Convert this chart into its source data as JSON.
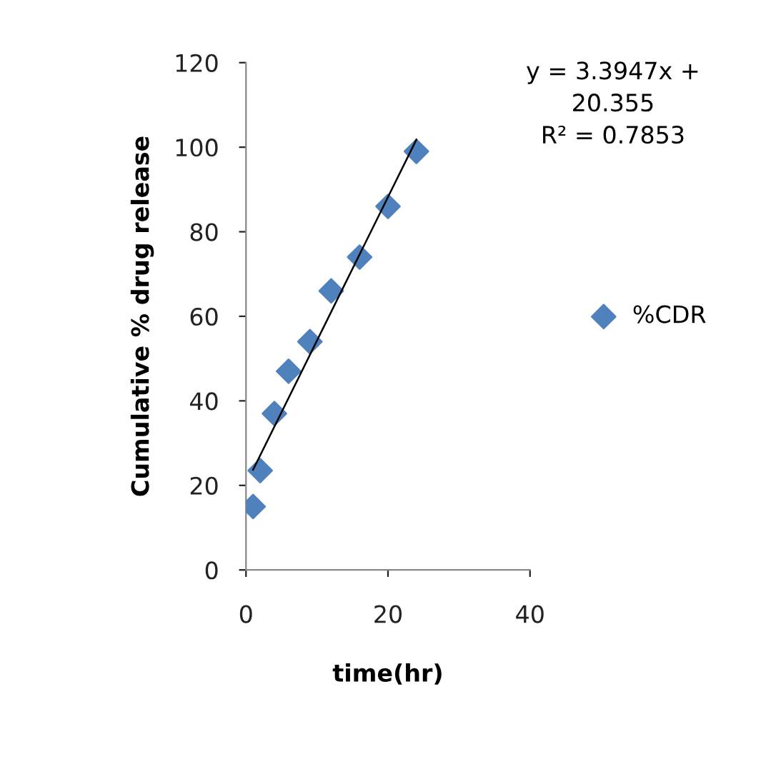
{
  "chart_data": {
    "type": "scatter",
    "xlabel": "time(hr)",
    "ylabel": "Cumulative % drug release",
    "series": [
      {
        "name": "%CDR",
        "color": "#4f81bd",
        "marker": "diamond",
        "x": [
          1,
          2,
          4,
          6,
          9,
          12,
          16,
          20,
          24
        ],
        "values": [
          15,
          23.5,
          37,
          47,
          54,
          66,
          74,
          86,
          99
        ]
      },
      {
        "type": "line",
        "color": "#000000",
        "line_style": "solid",
        "x": [
          1,
          24
        ],
        "values": [
          23.7,
          101.8
        ]
      }
    ],
    "annotations": [
      "y = 3.3947x +\n20.355\nR² = 0.7853"
    ],
    "xlim": [
      0,
      40
    ],
    "xticks": [
      0,
      20,
      40
    ],
    "ylim": [
      0,
      120
    ],
    "yticks": [
      0,
      20,
      40,
      60,
      80,
      100,
      120
    ],
    "grid": false,
    "legend": "right"
  }
}
